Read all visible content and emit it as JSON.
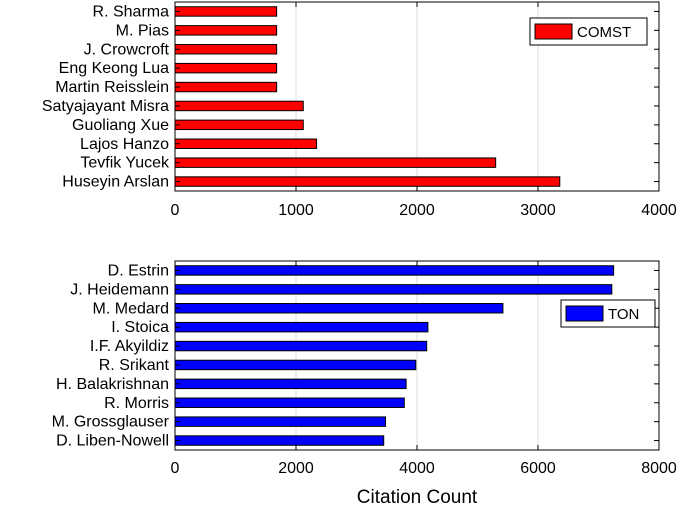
{
  "chart_data": [
    {
      "type": "bar",
      "orientation": "horizontal",
      "categories": [
        "R. Sharma",
        "M. Pias",
        "J. Crowcroft",
        "Eng Keong Lua",
        "Martin Reisslein",
        "Satyajayant Misra",
        "Guoliang Xue",
        "Lajos Hanzo",
        "Tevfik Yucek",
        "Huseyin Arslan"
      ],
      "series": [
        {
          "name": "COMST",
          "color": "#ff0000",
          "values": [
            840,
            840,
            840,
            840,
            840,
            1060,
            1060,
            1170,
            2650,
            3180
          ]
        }
      ],
      "xlim": [
        0,
        4000
      ],
      "xticks": [
        "0",
        "1000",
        "2000",
        "3000",
        "4000"
      ],
      "xlabel": "",
      "ylabel": "",
      "grid": "vertical",
      "legend": "top-right"
    },
    {
      "type": "bar",
      "orientation": "horizontal",
      "categories": [
        "D. Estrin",
        "J. Heidemann",
        "M. Medard",
        "I. Stoica",
        "I.F. Akyildiz",
        "R. Srikant",
        "H. Balakrishnan",
        "R. Morris",
        "M. Grossglauser",
        "D. Liben-Nowell"
      ],
      "series": [
        {
          "name": "TON",
          "color": "#0000ff",
          "values": [
            7250,
            7220,
            5420,
            4180,
            4160,
            3980,
            3820,
            3790,
            3480,
            3450
          ]
        }
      ],
      "xlim": [
        0,
        8000
      ],
      "xticks": [
        "0",
        "2000",
        "4000",
        "6000",
        "8000"
      ],
      "xlabel": "Citation Count",
      "ylabel": "",
      "grid": "vertical",
      "legend": "top-right"
    }
  ]
}
